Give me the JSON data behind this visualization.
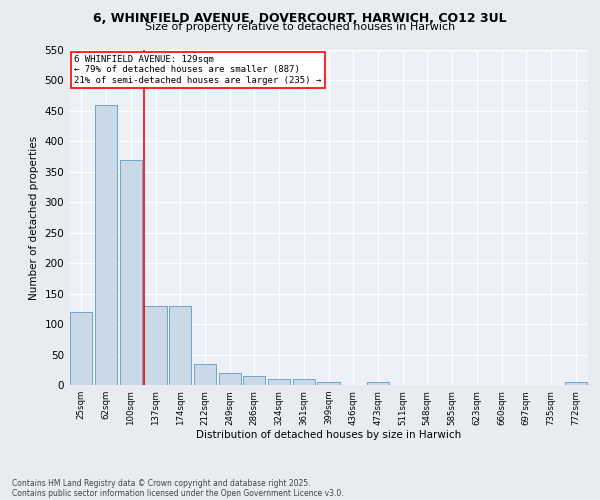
{
  "title_line1": "6, WHINFIELD AVENUE, DOVERCOURT, HARWICH, CO12 3UL",
  "title_line2": "Size of property relative to detached houses in Harwich",
  "xlabel": "Distribution of detached houses by size in Harwich",
  "ylabel": "Number of detached properties",
  "categories": [
    "25sqm",
    "62sqm",
    "100sqm",
    "137sqm",
    "174sqm",
    "212sqm",
    "249sqm",
    "286sqm",
    "324sqm",
    "361sqm",
    "399sqm",
    "436sqm",
    "473sqm",
    "511sqm",
    "548sqm",
    "585sqm",
    "623sqm",
    "660sqm",
    "697sqm",
    "735sqm",
    "772sqm"
  ],
  "values": [
    120,
    460,
    370,
    130,
    130,
    35,
    20,
    15,
    10,
    10,
    5,
    0,
    5,
    0,
    0,
    0,
    0,
    0,
    0,
    0,
    5
  ],
  "bar_color": "#c9d9e8",
  "bar_edge_color": "#5a9dc8",
  "annotation_label": "6 WHINFIELD AVENUE: 129sqm",
  "annotation_smaller": "← 79% of detached houses are smaller (887)",
  "annotation_larger": "21% of semi-detached houses are larger (235) →",
  "red_line_index": 3,
  "ylim": [
    0,
    550
  ],
  "yticks": [
    0,
    50,
    100,
    150,
    200,
    250,
    300,
    350,
    400,
    450,
    500,
    550
  ],
  "background_color": "#e8ecf0",
  "plot_bg_color": "#edf1f7",
  "grid_color": "#ffffff",
  "footer_line1": "Contains HM Land Registry data © Crown copyright and database right 2025.",
  "footer_line2": "Contains public sector information licensed under the Open Government Licence v3.0."
}
